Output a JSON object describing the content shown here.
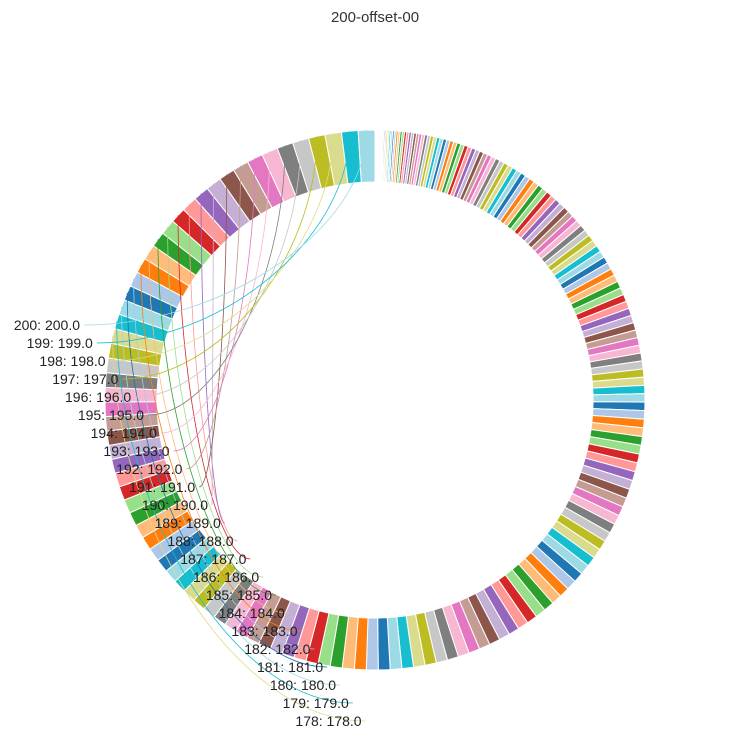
{
  "chart_data": {
    "type": "pie",
    "title": "200-offset-00",
    "donut": true,
    "series": [
      {
        "categories_range": [
          1,
          200
        ],
        "values_rule": "value equals category index (1..200)",
        "labeled_slices": [
          {
            "category": 178,
            "value": 178.0,
            "text": "178: 178.0"
          },
          {
            "category": 179,
            "value": 179.0,
            "text": "179: 179.0"
          },
          {
            "category": 180,
            "value": 180.0,
            "text": "180: 180.0"
          },
          {
            "category": 181,
            "value": 181.0,
            "text": "181: 181.0"
          },
          {
            "category": 182,
            "value": 182.0,
            "text": "182: 182.0"
          },
          {
            "category": 183,
            "value": 183.0,
            "text": "183: 183.0"
          },
          {
            "category": 184,
            "value": 184.0,
            "text": "184: 184.0"
          },
          {
            "category": 185,
            "value": 185.0,
            "text": "185: 185.0"
          },
          {
            "category": 186,
            "value": 186.0,
            "text": "186: 186.0"
          },
          {
            "category": 187,
            "value": 187.0,
            "text": "187: 187.0"
          },
          {
            "category": 188,
            "value": 188.0,
            "text": "188: 188.0"
          },
          {
            "category": 189,
            "value": 189.0,
            "text": "189: 189.0"
          },
          {
            "category": 190,
            "value": 190.0,
            "text": "190: 190.0"
          },
          {
            "category": 191,
            "value": 191.0,
            "text": "191: 191.0"
          },
          {
            "category": 192,
            "value": 192.0,
            "text": "192: 192.0"
          },
          {
            "category": 193,
            "value": 193.0,
            "text": "193: 193.0"
          },
          {
            "category": 194,
            "value": 194.0,
            "text": "194: 194.0"
          },
          {
            "category": 195,
            "value": 195.0,
            "text": "195: 195.0"
          },
          {
            "category": 196,
            "value": 196.0,
            "text": "196: 196.0"
          },
          {
            "category": 197,
            "value": 197.0,
            "text": "197: 197.0"
          },
          {
            "category": 198,
            "value": 198.0,
            "text": "198: 198.0"
          },
          {
            "category": 199,
            "value": 199.0,
            "text": "199: 199.0"
          },
          {
            "category": 200,
            "value": 200.0,
            "text": "200: 200.0"
          }
        ]
      }
    ],
    "palette": [
      "#1f77b4",
      "#aec7e8",
      "#ff7f0e",
      "#ffbb78",
      "#2ca02c",
      "#98df8a",
      "#d62728",
      "#ff9896",
      "#9467bd",
      "#c5b0d5",
      "#8c564b",
      "#c49c94",
      "#e377c2",
      "#f7b6d2",
      "#7f7f7f",
      "#c7c7c7",
      "#bcbd22",
      "#dbdb8d",
      "#17becf",
      "#9edae5"
    ],
    "legend": "none"
  }
}
